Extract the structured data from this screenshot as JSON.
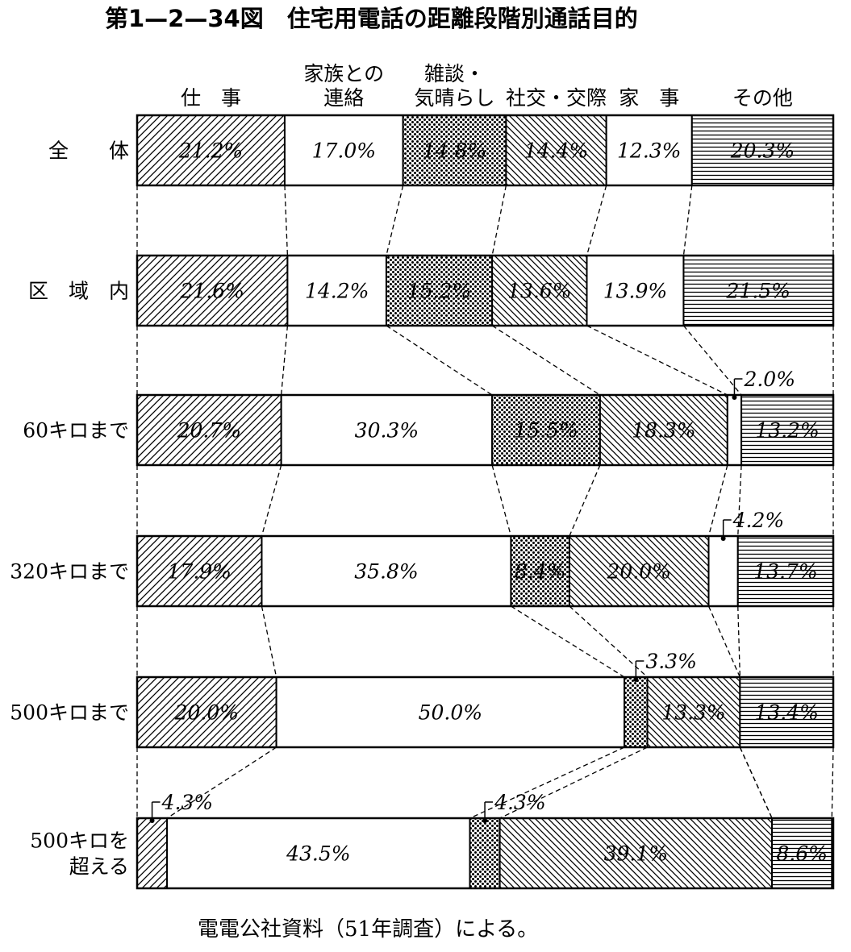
{
  "chart_data": {
    "type": "bar",
    "stacked": true,
    "orientation": "horizontal",
    "normalized_percent": true,
    "title": "第1—2—34図　住宅用電話の距離段階別通話目的",
    "categories": [
      {
        "label": [
          "仕　事"
        ],
        "pattern": "diag-fwd"
      },
      {
        "label": [
          "家族との",
          "連絡"
        ],
        "pattern": "none"
      },
      {
        "label": [
          "雑談・",
          "気晴らし"
        ],
        "pattern": "dots"
      },
      {
        "label": [
          "社交・交際"
        ],
        "pattern": "diag-back"
      },
      {
        "label": [
          "家　事"
        ],
        "pattern": "none"
      },
      {
        "label": [
          "その他"
        ],
        "pattern": "hlines"
      }
    ],
    "rows": [
      {
        "label": [
          "全　　体"
        ],
        "values": [
          21.2,
          17.0,
          14.8,
          14.4,
          12.3,
          20.3
        ],
        "value_labels": [
          "21.2%",
          "17.0%",
          "14.8%",
          "14.4%",
          "12.3%",
          "20.3%"
        ]
      },
      {
        "label": [
          "区　域　内"
        ],
        "values": [
          21.6,
          14.2,
          15.2,
          13.6,
          13.9,
          21.5
        ],
        "value_labels": [
          "21.6%",
          "14.2%",
          "15.2%",
          "13.6%",
          "13.9%",
          "21.5%"
        ]
      },
      {
        "label": [
          "60キロまで"
        ],
        "values": [
          20.7,
          30.3,
          15.5,
          18.3,
          2.0,
          13.2
        ],
        "value_labels": [
          "20.7%",
          "30.3%",
          "15.5%",
          "18.3%",
          "2.0%",
          "13.2%"
        ]
      },
      {
        "label": [
          "320キロまで"
        ],
        "values": [
          17.9,
          35.8,
          8.4,
          20.0,
          4.2,
          13.7
        ],
        "value_labels": [
          "17.9%",
          "35.8%",
          "8.4%",
          "20.0%",
          "4.2%",
          "13.7%"
        ]
      },
      {
        "label": [
          "500キロまで"
        ],
        "values": [
          20.0,
          50.0,
          3.3,
          13.3,
          0,
          13.4
        ],
        "value_labels": [
          "20.0%",
          "50.0%",
          "3.3%",
          "13.3%",
          "",
          "13.4%"
        ]
      },
      {
        "label": [
          "500キロを",
          "超える"
        ],
        "values": [
          4.3,
          43.5,
          4.3,
          39.1,
          0,
          8.6
        ],
        "value_labels": [
          "4.3%",
          "43.5%",
          "4.3%",
          "39.1%",
          "",
          "8.6%"
        ]
      }
    ],
    "xlim": [
      0,
      100
    ],
    "grid": false,
    "legend": "top"
  },
  "source_note": "電電公社資料（51年調査）による。"
}
